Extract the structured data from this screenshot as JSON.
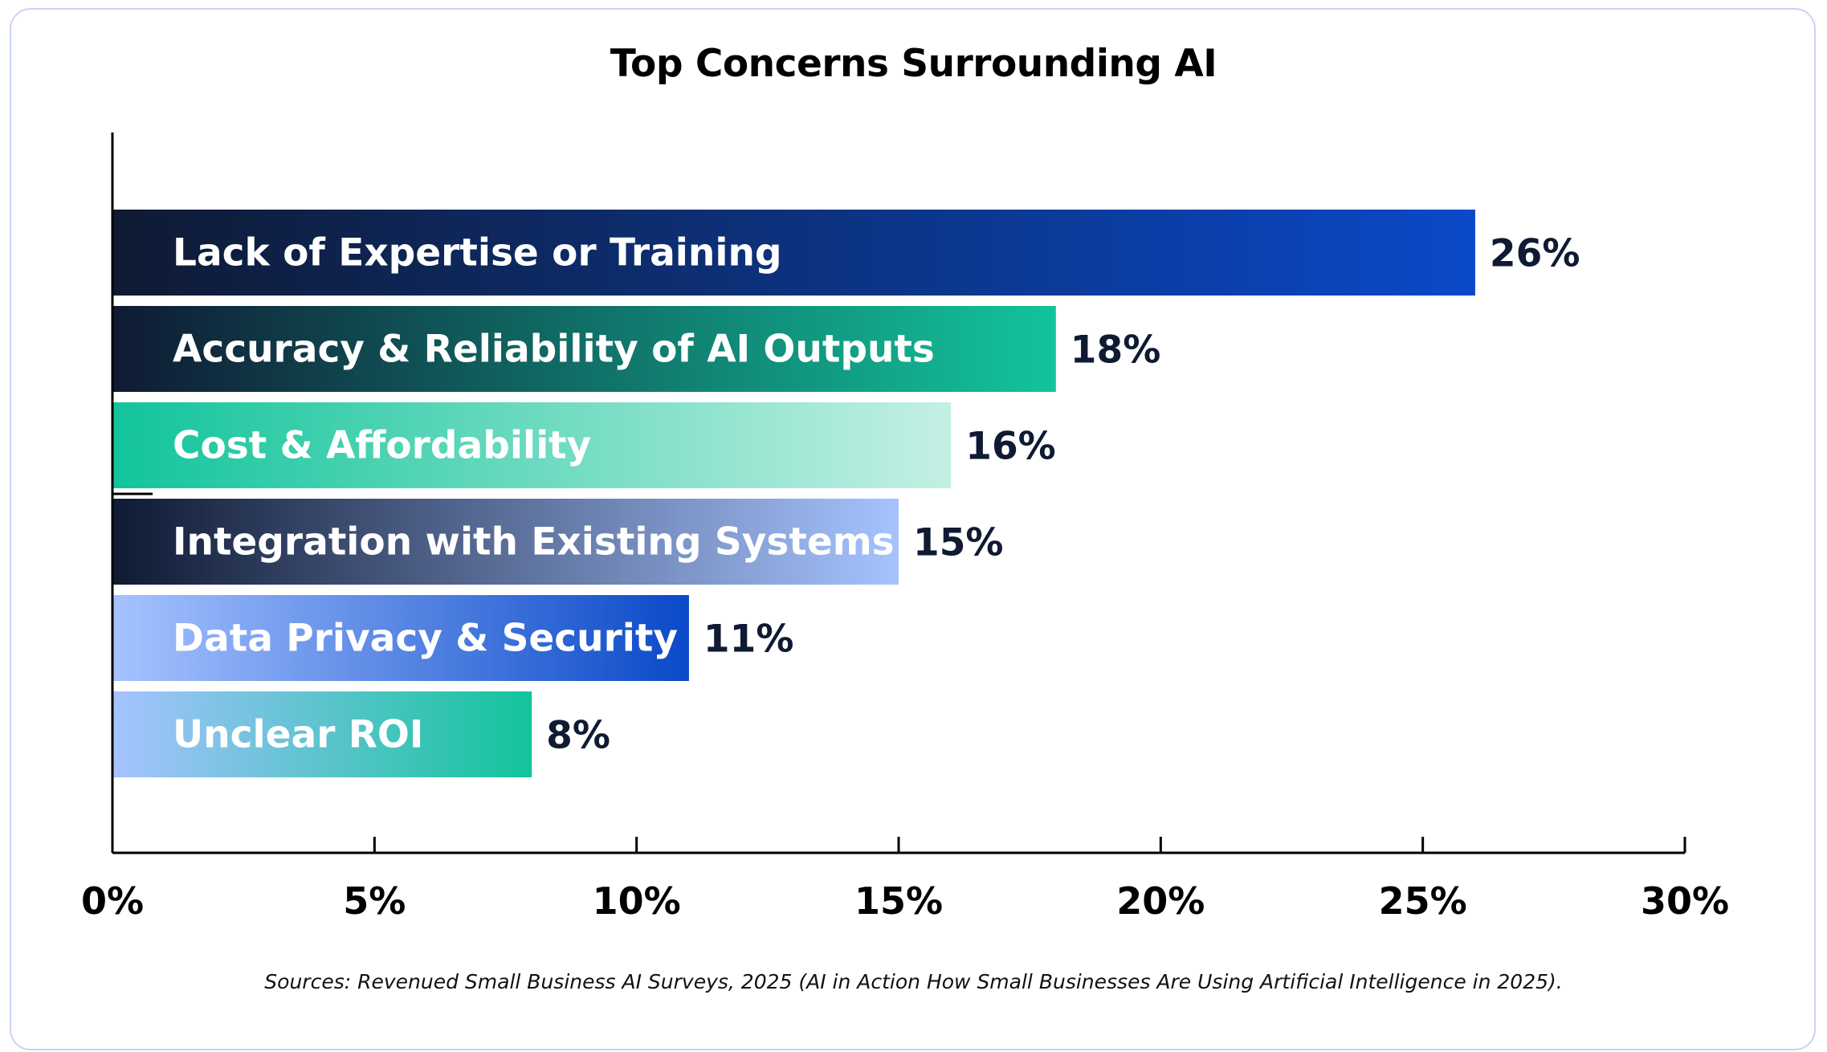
{
  "colors": {
    "navy": "#0f1a33",
    "blue": "#0a49c8",
    "teal": "#12c49b",
    "light_teal": "#b2ecdc",
    "periwinkle": "#a6c3ff",
    "card_border": "#c9d3f5"
  },
  "chart_data": {
    "type": "bar",
    "orientation": "horizontal",
    "title": "Top Concerns Surrounding AI",
    "categories": [
      "Lack of Expertise or Training",
      "Accuracy & Reliability of AI Outputs",
      "Cost & Affordability",
      "Integration with Existing Systems",
      "Data Privacy & Security",
      "Unclear ROI"
    ],
    "values": [
      26,
      18,
      16,
      15,
      11,
      8
    ],
    "value_labels": [
      "26%",
      "18%",
      "16%",
      "15%",
      "11%",
      "8%"
    ],
    "xlim": [
      0,
      30
    ],
    "xticks": [
      0,
      5,
      10,
      15,
      20,
      25,
      30
    ],
    "xtick_labels": [
      "0%",
      "5%",
      "10%",
      "15%",
      "20%",
      "25%",
      "30%"
    ],
    "xlabel": "",
    "ylabel": "",
    "grid": false,
    "legend": "none",
    "bar_gradients": [
      [
        "#0f1a33",
        "#0a49c8"
      ],
      [
        "#0f1a33",
        "#12c49b"
      ],
      [
        "#12c49b",
        "#c4f0e4"
      ],
      [
        "#0f1a33",
        "#a6c3ff"
      ],
      [
        "#a6c3ff",
        "#0a49c8"
      ],
      [
        "#a6c3ff",
        "#12c49b"
      ]
    ]
  },
  "source": "Sources: Revenued Small Business AI Surveys, 2025 (AI in Action How Small Businesses Are Using Artificial Intelligence in 2025)."
}
